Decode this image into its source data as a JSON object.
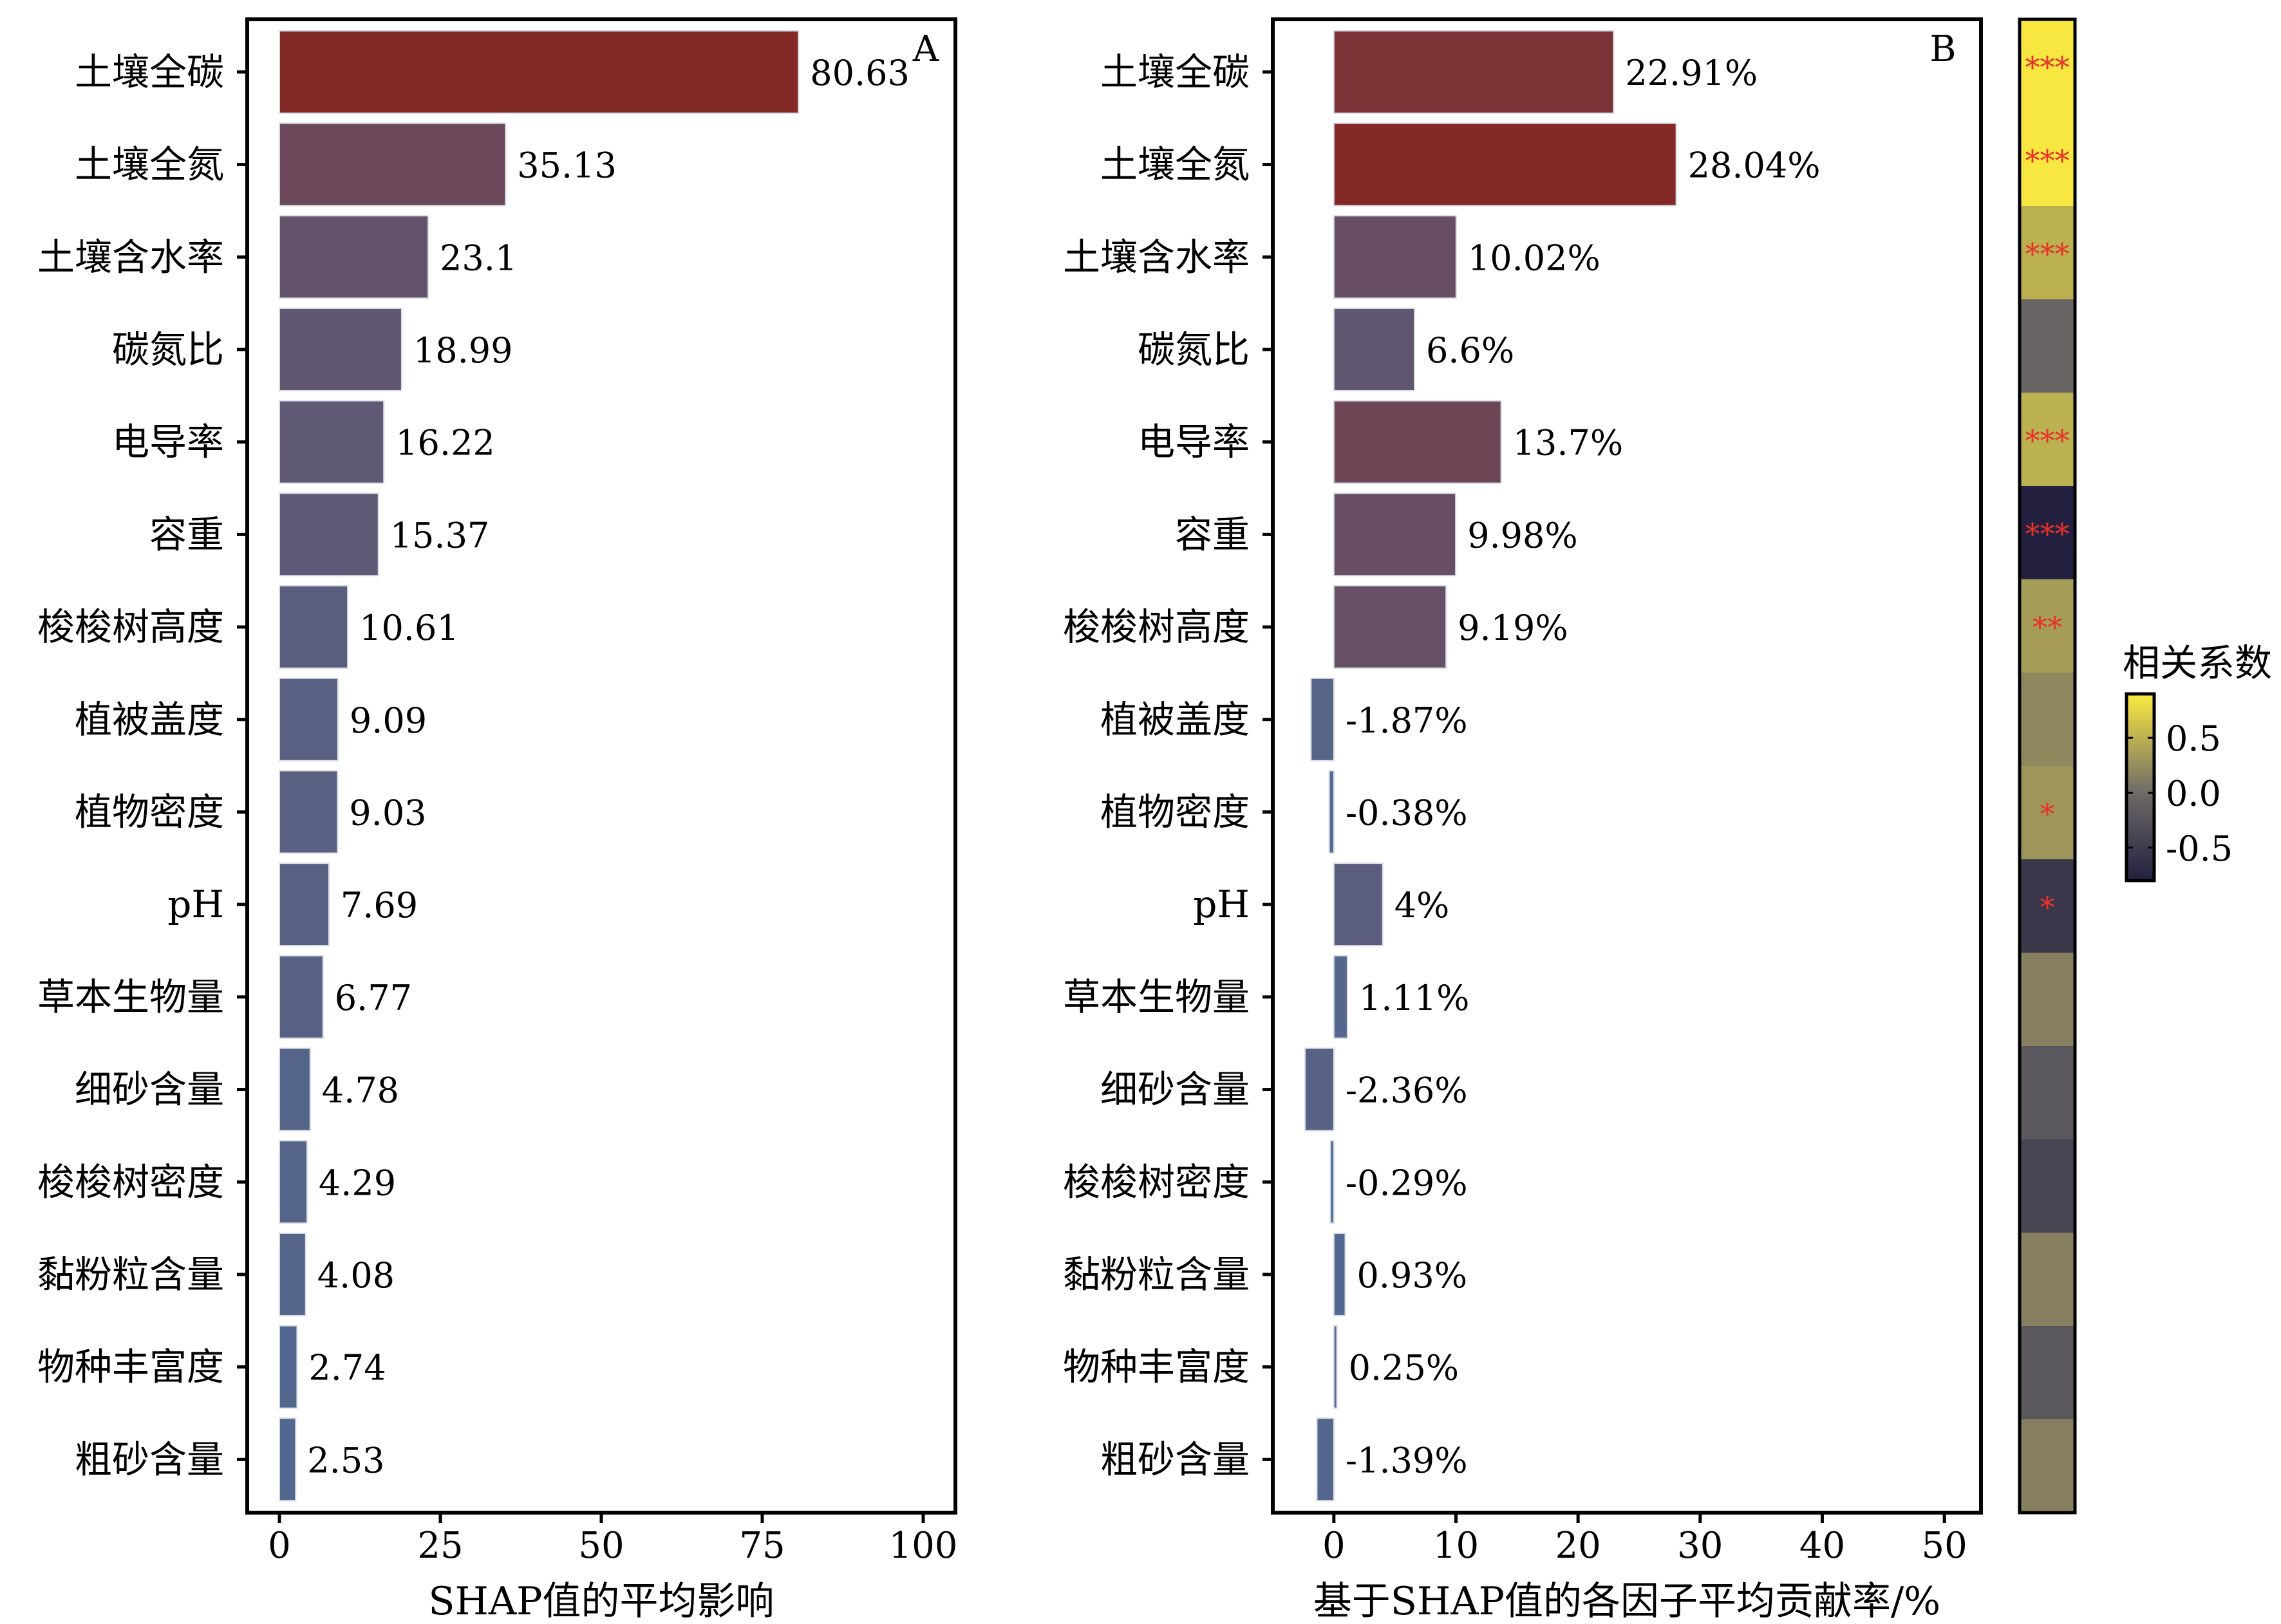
{
  "chart_data": [
    {
      "type": "bar",
      "orientation": "horizontal",
      "panel_label": "A",
      "xlabel": "SHAP值的平均影响",
      "ylabel": "",
      "xlim": [
        -5,
        105
      ],
      "xticks": [
        "0",
        "25",
        "50",
        "75",
        "100"
      ],
      "xtick_values": [
        0,
        25,
        50,
        75,
        100
      ],
      "categories": [
        "土壤全碳",
        "土壤全氮",
        "土壤含水率",
        "碳氮比",
        "电导率",
        "容重",
        "梭梭树高度",
        "植被盖度",
        "植物密度",
        "pH",
        "草本生物量",
        "细砂含量",
        "梭梭树密度",
        "黏粉粒含量",
        "物种丰富度",
        "粗砂含量"
      ],
      "values": [
        80.63,
        35.13,
        23.1,
        18.99,
        16.22,
        15.37,
        10.61,
        9.09,
        9.03,
        7.69,
        6.77,
        4.78,
        4.29,
        4.08,
        2.74,
        2.53
      ],
      "labels": [
        "80.63",
        "35.13",
        "23.1",
        "18.99",
        "16.22",
        "15.37",
        "10.61",
        "9.09",
        "9.03",
        "7.69",
        "6.77",
        "4.78",
        "4.29",
        "4.08",
        "2.74",
        "2.53"
      ],
      "color_low": "#4f6d97",
      "color_high": "#832925"
    },
    {
      "type": "bar",
      "orientation": "horizontal",
      "panel_label": "B",
      "xlabel": "基于SHAP值的各因子平均贡献率/%",
      "ylabel": "",
      "xlim": [
        -5,
        53
      ],
      "xticks": [
        "0",
        "10",
        "20",
        "30",
        "40",
        "50"
      ],
      "xtick_values": [
        0,
        10,
        20,
        30,
        40,
        50
      ],
      "categories": [
        "土壤全碳",
        "土壤全氮",
        "土壤含水率",
        "碳氮比",
        "电导率",
        "容重",
        "梭梭树高度",
        "植被盖度",
        "植物密度",
        "pH",
        "草本生物量",
        "细砂含量",
        "梭梭树密度",
        "黏粉粒含量",
        "物种丰富度",
        "粗砂含量"
      ],
      "values": [
        22.91,
        28.04,
        10.02,
        6.6,
        13.7,
        9.98,
        9.19,
        -1.87,
        -0.38,
        4,
        1.11,
        -2.36,
        -0.29,
        0.93,
        0.25,
        -1.39
      ],
      "labels": [
        "22.91%",
        "28.04%",
        "10.02%",
        "6.6%",
        "13.7%",
        "9.98%",
        "9.19%",
        "-1.87%",
        "-0.38%",
        "4%",
        "1.11%",
        "-2.36%",
        "-0.29%",
        "0.93%",
        "0.25%",
        "-1.39%"
      ],
      "color_low": "#4f6d97",
      "color_high": "#832925"
    },
    {
      "type": "heatmap",
      "title": "",
      "legend_title": "相关系数",
      "correlation": [
        0.88,
        0.88,
        0.5,
        -0.05,
        0.5,
        -0.85,
        0.35,
        0.2,
        0.3,
        -0.55,
        0.15,
        -0.2,
        -0.4,
        0.15,
        -0.2,
        0.15
      ],
      "significance": [
        "***",
        "***",
        "***",
        "",
        "***",
        "***",
        "**",
        "",
        "*",
        "*",
        "",
        "",
        "",
        "",
        "",
        ""
      ],
      "colorbar_ticks": [
        "0.5",
        "0.0",
        "-0.5"
      ],
      "colorbar_tick_values": [
        0.5,
        0.0,
        -0.5
      ],
      "colorbar_range": [
        -0.8,
        0.9
      ],
      "star_color": "#e8312a",
      "color_low": "#22203e",
      "color_mid": "#6e6a67",
      "color_high": "#fbea40"
    }
  ]
}
